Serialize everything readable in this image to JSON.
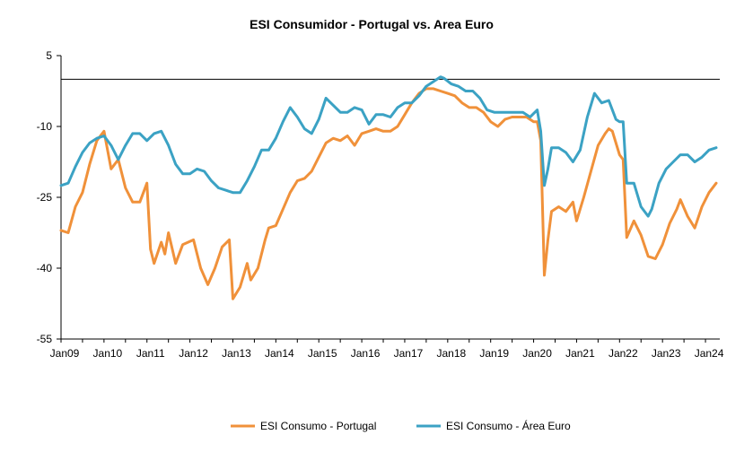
{
  "chart_data": {
    "type": "line",
    "title": "ESI Consumidor -  Portugal vs. Area Euro",
    "xlabel": "",
    "ylabel": "",
    "ylim": [
      -55,
      5
    ],
    "yticks": [
      "5",
      "-10",
      "-25",
      "-40",
      "-55"
    ],
    "ytick_values": [
      5,
      -10,
      -25,
      -40,
      -55
    ],
    "xlim": [
      "2009-01",
      "2024-05"
    ],
    "xticks": [
      "Jan09",
      "Jan10",
      "Jan11",
      "Jan12",
      "Jan13",
      "Jan14",
      "Jan15",
      "Jan16",
      "Jan17",
      "Jan18",
      "Jan19",
      "Jan20",
      "Jan21",
      "Jan22",
      "Jan23",
      "Jan24"
    ],
    "xtick_dates": [
      "2009-01",
      "2010-01",
      "2011-01",
      "2012-01",
      "2013-01",
      "2014-01",
      "2015-01",
      "2016-01",
      "2017-01",
      "2018-01",
      "2019-01",
      "2020-01",
      "2021-01",
      "2022-01",
      "2023-01",
      "2024-01"
    ],
    "reference_line": 0,
    "legend_position": "bottom",
    "series": [
      {
        "name": "ESI Consumo  - Portugal",
        "color": "#F0913A",
        "points": [
          [
            "2009-01",
            -32
          ],
          [
            "2009-03",
            -32.5
          ],
          [
            "2009-05",
            -27
          ],
          [
            "2009-07",
            -24
          ],
          [
            "2009-09",
            -18
          ],
          [
            "2009-11",
            -13
          ],
          [
            "2010-01",
            -11
          ],
          [
            "2010-03",
            -19
          ],
          [
            "2010-05",
            -17
          ],
          [
            "2010-07",
            -23
          ],
          [
            "2010-09",
            -26
          ],
          [
            "2010-11",
            -26
          ],
          [
            "2011-01",
            -22
          ],
          [
            "2011-02",
            -36
          ],
          [
            "2011-03",
            -39
          ],
          [
            "2011-05",
            -34.5
          ],
          [
            "2011-06",
            -37
          ],
          [
            "2011-07",
            -32.5
          ],
          [
            "2011-09",
            -39
          ],
          [
            "2011-11",
            -35
          ],
          [
            "2012-02",
            -34
          ],
          [
            "2012-04",
            -40
          ],
          [
            "2012-06",
            -43.5
          ],
          [
            "2012-08",
            -40
          ],
          [
            "2012-10",
            -35.5
          ],
          [
            "2012-12",
            -34
          ],
          [
            "2013-01",
            -46.5
          ],
          [
            "2013-03",
            -44
          ],
          [
            "2013-05",
            -39
          ],
          [
            "2013-06",
            -42.5
          ],
          [
            "2013-08",
            -40
          ],
          [
            "2013-10",
            -34
          ],
          [
            "2013-11",
            -31.5
          ],
          [
            "2014-01",
            -31
          ],
          [
            "2014-03",
            -27.5
          ],
          [
            "2014-05",
            -24
          ],
          [
            "2014-07",
            -21.5
          ],
          [
            "2014-09",
            -21
          ],
          [
            "2014-11",
            -19.5
          ],
          [
            "2015-01",
            -16.5
          ],
          [
            "2015-03",
            -13.5
          ],
          [
            "2015-05",
            -12.5
          ],
          [
            "2015-07",
            -13
          ],
          [
            "2015-09",
            -12
          ],
          [
            "2015-11",
            -14
          ],
          [
            "2016-01",
            -11.5
          ],
          [
            "2016-03",
            -11
          ],
          [
            "2016-05",
            -10.5
          ],
          [
            "2016-07",
            -11
          ],
          [
            "2016-09",
            -11
          ],
          [
            "2016-11",
            -10
          ],
          [
            "2017-01",
            -7.5
          ],
          [
            "2017-03",
            -5
          ],
          [
            "2017-05",
            -3
          ],
          [
            "2017-07",
            -2
          ],
          [
            "2017-09",
            -2
          ],
          [
            "2017-11",
            -2.5
          ],
          [
            "2018-01",
            -3
          ],
          [
            "2018-03",
            -3.5
          ],
          [
            "2018-05",
            -5
          ],
          [
            "2018-07",
            -6
          ],
          [
            "2018-09",
            -6
          ],
          [
            "2018-11",
            -7
          ],
          [
            "2019-01",
            -9
          ],
          [
            "2019-03",
            -10
          ],
          [
            "2019-05",
            -8.5
          ],
          [
            "2019-07",
            -8
          ],
          [
            "2019-09",
            -8
          ],
          [
            "2019-11",
            -8
          ],
          [
            "2020-01",
            -9
          ],
          [
            "2020-02",
            -9
          ],
          [
            "2020-03",
            -13
          ],
          [
            "2020-04",
            -41.5
          ],
          [
            "2020-05",
            -34
          ],
          [
            "2020-06",
            -28
          ],
          [
            "2020-08",
            -27
          ],
          [
            "2020-10",
            -28
          ],
          [
            "2020-12",
            -26
          ],
          [
            "2021-01",
            -30
          ],
          [
            "2021-03",
            -25
          ],
          [
            "2021-05",
            -19.5
          ],
          [
            "2021-07",
            -14
          ],
          [
            "2021-09",
            -11.5
          ],
          [
            "2021-10",
            -10.5
          ],
          [
            "2021-11",
            -11
          ],
          [
            "2022-01",
            -16
          ],
          [
            "2022-02",
            -17
          ],
          [
            "2022-03",
            -33.5
          ],
          [
            "2022-05",
            -30
          ],
          [
            "2022-07",
            -33
          ],
          [
            "2022-09",
            -37.5
          ],
          [
            "2022-11",
            -38
          ],
          [
            "2023-01",
            -35
          ],
          [
            "2023-03",
            -30.5
          ],
          [
            "2023-05",
            -27.5
          ],
          [
            "2023-06",
            -25.5
          ],
          [
            "2023-08",
            -29
          ],
          [
            "2023-10",
            -31.5
          ],
          [
            "2023-12",
            -27
          ],
          [
            "2024-02",
            -24
          ],
          [
            "2024-04",
            -22
          ]
        ]
      },
      {
        "name": "ESI Consumo - Área Euro",
        "color": "#3BA2C4",
        "points": [
          [
            "2009-01",
            -22.5
          ],
          [
            "2009-03",
            -22
          ],
          [
            "2009-05",
            -18.5
          ],
          [
            "2009-07",
            -15.5
          ],
          [
            "2009-09",
            -13.5
          ],
          [
            "2009-11",
            -12.5
          ],
          [
            "2010-01",
            -12
          ],
          [
            "2010-03",
            -14
          ],
          [
            "2010-05",
            -17
          ],
          [
            "2010-07",
            -14
          ],
          [
            "2010-09",
            -11.5
          ],
          [
            "2010-11",
            -11.5
          ],
          [
            "2011-01",
            -13
          ],
          [
            "2011-03",
            -11.5
          ],
          [
            "2011-05",
            -11
          ],
          [
            "2011-07",
            -14
          ],
          [
            "2011-09",
            -18
          ],
          [
            "2011-11",
            -20
          ],
          [
            "2012-01",
            -20
          ],
          [
            "2012-03",
            -19
          ],
          [
            "2012-05",
            -19.5
          ],
          [
            "2012-07",
            -21.5
          ],
          [
            "2012-09",
            -23
          ],
          [
            "2012-11",
            -23.5
          ],
          [
            "2013-01",
            -24
          ],
          [
            "2013-03",
            -24
          ],
          [
            "2013-05",
            -21.5
          ],
          [
            "2013-07",
            -18.5
          ],
          [
            "2013-09",
            -15
          ],
          [
            "2013-11",
            -15
          ],
          [
            "2014-01",
            -12.5
          ],
          [
            "2014-03",
            -9
          ],
          [
            "2014-05",
            -6
          ],
          [
            "2014-07",
            -8
          ],
          [
            "2014-09",
            -10.5
          ],
          [
            "2014-11",
            -11.5
          ],
          [
            "2015-01",
            -8.5
          ],
          [
            "2015-03",
            -4
          ],
          [
            "2015-05",
            -5.5
          ],
          [
            "2015-07",
            -7
          ],
          [
            "2015-09",
            -7
          ],
          [
            "2015-11",
            -6
          ],
          [
            "2016-01",
            -6.5
          ],
          [
            "2016-03",
            -9.5
          ],
          [
            "2016-05",
            -7.5
          ],
          [
            "2016-07",
            -7.5
          ],
          [
            "2016-09",
            -8
          ],
          [
            "2016-11",
            -6
          ],
          [
            "2017-01",
            -5
          ],
          [
            "2017-03",
            -5
          ],
          [
            "2017-05",
            -3.5
          ],
          [
            "2017-07",
            -1.5
          ],
          [
            "2017-09",
            -0.5
          ],
          [
            "2017-11",
            0.5
          ],
          [
            "2017-12",
            0.2
          ],
          [
            "2018-02",
            -1
          ],
          [
            "2018-04",
            -1.5
          ],
          [
            "2018-06",
            -2.5
          ],
          [
            "2018-08",
            -2.5
          ],
          [
            "2018-10",
            -4
          ],
          [
            "2018-12",
            -6.5
          ],
          [
            "2019-02",
            -7
          ],
          [
            "2019-04",
            -7
          ],
          [
            "2019-06",
            -7
          ],
          [
            "2019-08",
            -7
          ],
          [
            "2019-10",
            -7
          ],
          [
            "2019-12",
            -8
          ],
          [
            "2020-02",
            -6.5
          ],
          [
            "2020-03",
            -11
          ],
          [
            "2020-04",
            -22.5
          ],
          [
            "2020-05",
            -19
          ],
          [
            "2020-06",
            -14.5
          ],
          [
            "2020-08",
            -14.5
          ],
          [
            "2020-10",
            -15.5
          ],
          [
            "2020-12",
            -17.5
          ],
          [
            "2021-02",
            -15
          ],
          [
            "2021-04",
            -8
          ],
          [
            "2021-06",
            -3
          ],
          [
            "2021-08",
            -5
          ],
          [
            "2021-10",
            -4.5
          ],
          [
            "2021-12",
            -8.5
          ],
          [
            "2022-01",
            -9
          ],
          [
            "2022-02",
            -9
          ],
          [
            "2022-03",
            -22
          ],
          [
            "2022-05",
            -22
          ],
          [
            "2022-07",
            -27
          ],
          [
            "2022-09",
            -29
          ],
          [
            "2022-10",
            -27.5
          ],
          [
            "2022-12",
            -22
          ],
          [
            "2023-02",
            -19
          ],
          [
            "2023-04",
            -17.5
          ],
          [
            "2023-06",
            -16
          ],
          [
            "2023-08",
            -16
          ],
          [
            "2023-10",
            -17.5
          ],
          [
            "2023-12",
            -16.5
          ],
          [
            "2024-02",
            -15
          ],
          [
            "2024-04",
            -14.5
          ]
        ]
      }
    ]
  }
}
